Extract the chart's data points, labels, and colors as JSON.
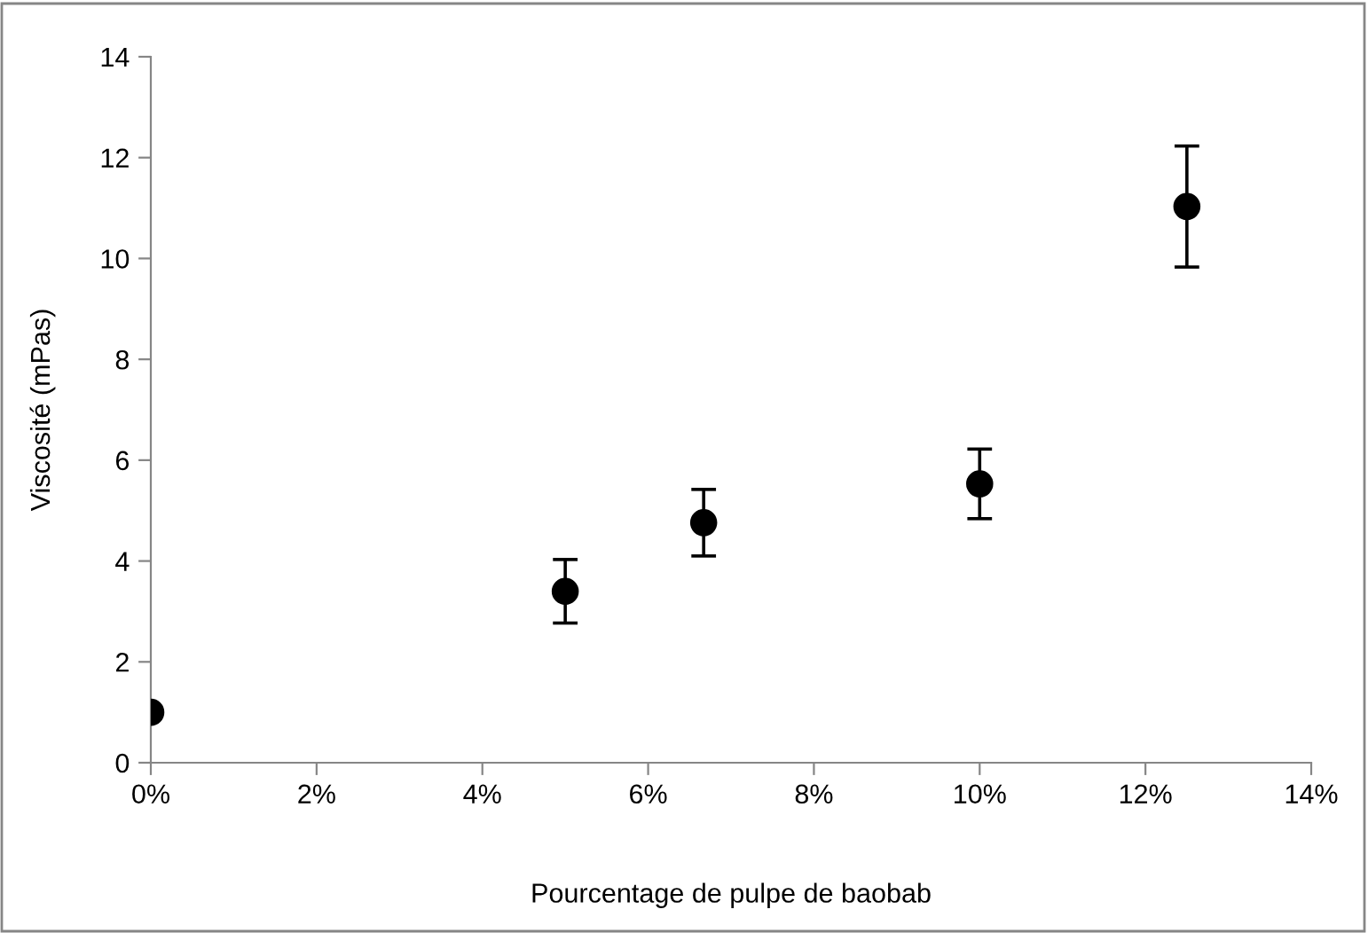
{
  "chart_data": {
    "type": "scatter",
    "xlabel": "Pourcentage de pulpe de baobab",
    "ylabel": "Viscosité (mPas)",
    "x": [
      0,
      5,
      6.67,
      10,
      12.5
    ],
    "series": [
      {
        "color": "#000000",
        "values": [
          1.0,
          3.4,
          4.76,
          5.53,
          11.03
        ],
        "errors": [
          null,
          0.63,
          0.66,
          0.69,
          1.2
        ]
      }
    ],
    "marker": "circle",
    "xlim": [
      0,
      14
    ],
    "ylim": [
      0,
      14
    ],
    "xticks": [
      {
        "value": 0,
        "label": "0%"
      },
      {
        "value": 2,
        "label": "2%"
      },
      {
        "value": 4,
        "label": "4%"
      },
      {
        "value": 6,
        "label": "6%"
      },
      {
        "value": 8,
        "label": "8%"
      },
      {
        "value": 10,
        "label": "10%"
      },
      {
        "value": 12,
        "label": "12%"
      },
      {
        "value": 14,
        "label": "14%"
      }
    ],
    "yticks": [
      0,
      2,
      4,
      6,
      8,
      10,
      12,
      14
    ],
    "grid": false
  }
}
